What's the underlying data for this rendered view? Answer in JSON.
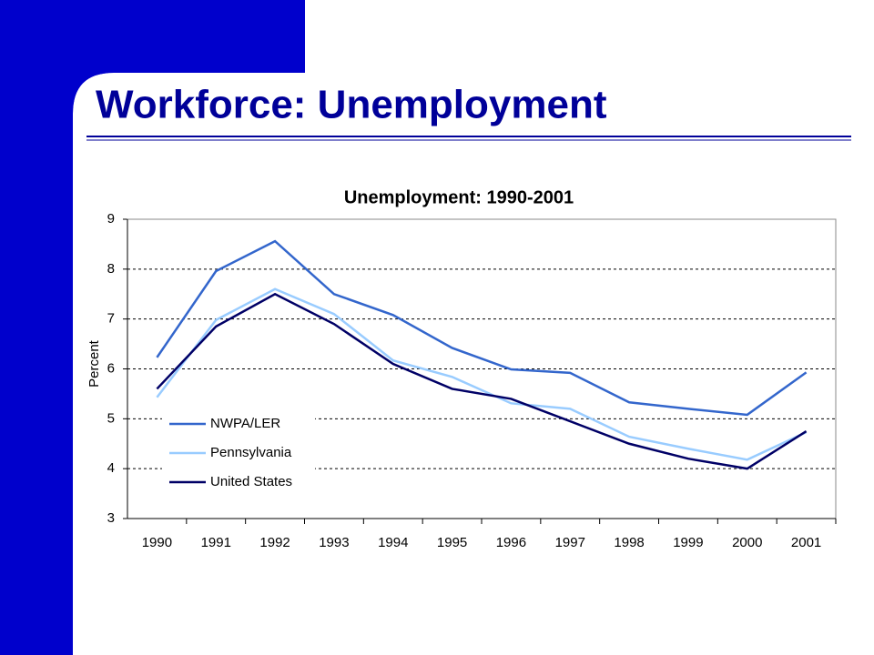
{
  "header": {
    "title": "Workforce:  Unemployment"
  },
  "chart_data": {
    "type": "line",
    "title": "Unemployment: 1990-2001",
    "y_label": "Percent",
    "categories": [
      "1990",
      "1991",
      "1992",
      "1993",
      "1994",
      "1995",
      "1996",
      "1997",
      "1998",
      "1999",
      "2000",
      "2001"
    ],
    "series": [
      {
        "name": "NWPA/LER",
        "color": "#3366cc",
        "values": [
          6.23,
          7.96,
          8.56,
          7.5,
          7.08,
          6.42,
          5.99,
          5.92,
          5.33,
          5.2,
          5.08,
          5.93
        ]
      },
      {
        "name": "Pennsylvania",
        "color": "#99ccff",
        "values": [
          5.43,
          6.98,
          7.6,
          7.1,
          6.17,
          5.84,
          5.31,
          5.2,
          4.64,
          4.4,
          4.18,
          4.73
        ]
      },
      {
        "name": "United States",
        "color": "#000066",
        "values": [
          5.6,
          6.85,
          7.5,
          6.9,
          6.1,
          5.6,
          5.4,
          4.95,
          4.5,
          4.2,
          4.0,
          4.75
        ]
      }
    ],
    "ylim": [
      3,
      9
    ],
    "yticks": [
      3,
      4,
      5,
      6,
      7,
      8,
      9
    ],
    "grid": true,
    "legend": "lower-left"
  }
}
